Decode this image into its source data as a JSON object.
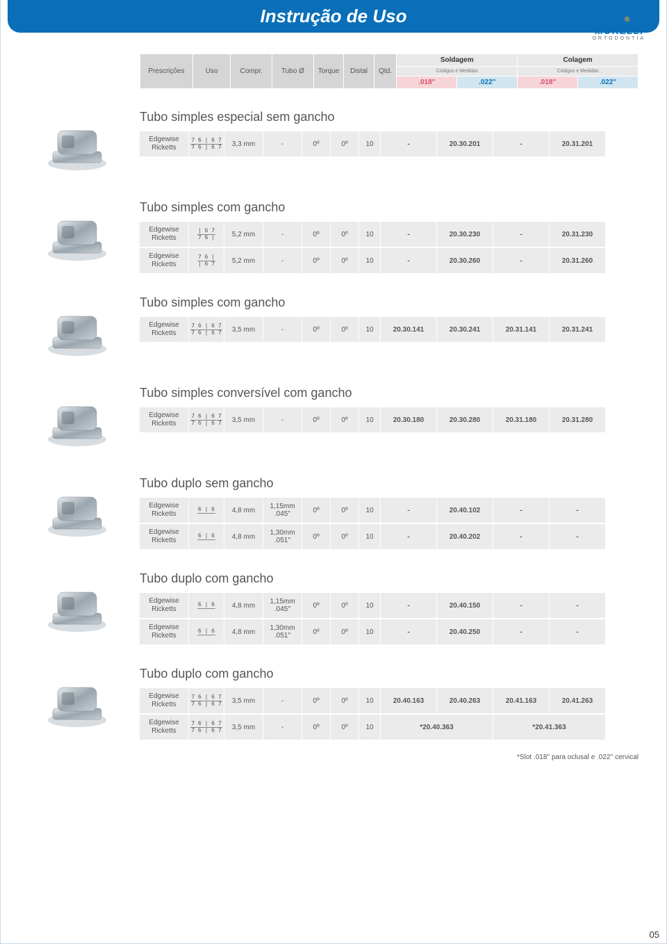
{
  "banner": "Instrução de Uso",
  "brand": {
    "name": "MORELLI",
    "sub": "ORTODONTIA"
  },
  "header": {
    "cols": [
      "Prescrições",
      "Uso",
      "Compr.",
      "Tubo Ø",
      "Torque",
      "Distal",
      "Qtd."
    ],
    "grp1": "Soldagem",
    "grp2": "Colagem",
    "sub": "Códigos e Medidas",
    "s018": ".018''",
    "s022": ".022''"
  },
  "sections": [
    {
      "title": "Tubo simples especial sem gancho",
      "rows": [
        {
          "presc": "Edgewise Ricketts",
          "uso": "7 6 | 6 7\n7 6 | 6 7",
          "compr": "3,3 mm",
          "tubo": "-",
          "torque": "0º",
          "distal": "0º",
          "qtd": "10",
          "c": [
            "-",
            "20.30.201",
            "-",
            "20.31.201"
          ],
          "t": [
            "d",
            "b",
            "d",
            "b"
          ]
        }
      ]
    },
    {
      "title": "Tubo simples com gancho",
      "rows": [
        {
          "presc": "Edgewise Ricketts",
          "uso": "    | 6 7\n7 6 |",
          "compr": "5,2 mm",
          "tubo": "-",
          "torque": "0º",
          "distal": "0º",
          "qtd": "10",
          "c": [
            "-",
            "20.30.230",
            "-",
            "20.31.230"
          ],
          "t": [
            "d",
            "b",
            "d",
            "b"
          ]
        },
        {
          "presc": "Edgewise Ricketts",
          "uso": "7 6 |\n    | 6 7",
          "compr": "5,2 mm",
          "tubo": "-",
          "torque": "0º",
          "distal": "0º",
          "qtd": "10",
          "c": [
            "-",
            "20.30.260",
            "-",
            "20.31.260"
          ],
          "t": [
            "d",
            "b",
            "d",
            "b"
          ]
        }
      ]
    },
    {
      "title": "Tubo simples com gancho",
      "rows": [
        {
          "presc": "Edgewise Ricketts",
          "uso": "7 6 | 6 7\n7 6 | 6 7",
          "compr": "3,5 mm",
          "tubo": "-",
          "torque": "0º",
          "distal": "0º",
          "qtd": "10",
          "c": [
            "20.30.141",
            "20.30.241",
            "20.31.141",
            "20.31.241"
          ],
          "t": [
            "r",
            "b",
            "r",
            "b"
          ]
        }
      ]
    },
    {
      "title": "Tubo simples conversível com gancho",
      "rows": [
        {
          "presc": "Edgewise Ricketts",
          "uso": "7 6 | 6 7\n7 6 | 6 7",
          "compr": "3,5 mm",
          "tubo": "-",
          "torque": "0º",
          "distal": "0º",
          "qtd": "10",
          "c": [
            "20.30.180",
            "20.30.280",
            "20.31.180",
            "20.31.280"
          ],
          "t": [
            "r",
            "b",
            "r",
            "b"
          ]
        }
      ]
    },
    {
      "title": "Tubo duplo sem gancho",
      "rows": [
        {
          "presc": "Edgewise Ricketts",
          "uso": "6 | 6",
          "compr": "4,8 mm",
          "tubo": "1,15mm .045''",
          "torque": "0º",
          "distal": "0º",
          "qtd": "10",
          "c": [
            "-",
            "20.40.102",
            "-",
            "-"
          ],
          "t": [
            "d",
            "b",
            "d",
            "d"
          ]
        },
        {
          "presc": "Edgewise Ricketts",
          "uso": "6 | 6",
          "compr": "4,8 mm",
          "tubo": "1,30mm .051''",
          "torque": "0º",
          "distal": "0º",
          "qtd": "10",
          "c": [
            "-",
            "20.40.202",
            "-",
            "-"
          ],
          "t": [
            "d",
            "b",
            "d",
            "d"
          ]
        }
      ]
    },
    {
      "title": "Tubo duplo com gancho",
      "rows": [
        {
          "presc": "Edgewise Ricketts",
          "uso": "6 | 6",
          "compr": "4,8 mm",
          "tubo": "1,15mm .045''",
          "torque": "0º",
          "distal": "0º",
          "qtd": "10",
          "c": [
            "-",
            "20.40.150",
            "-",
            "-"
          ],
          "t": [
            "d",
            "b",
            "d",
            "d"
          ]
        },
        {
          "presc": "Edgewise Ricketts",
          "uso": "6 | 6",
          "compr": "4,8 mm",
          "tubo": "1,30mm .051''",
          "torque": "0º",
          "distal": "0º",
          "qtd": "10",
          "c": [
            "-",
            "20.40.250",
            "-",
            "-"
          ],
          "t": [
            "d",
            "b",
            "d",
            "d"
          ]
        }
      ]
    },
    {
      "title": "Tubo duplo com gancho",
      "rows": [
        {
          "presc": "Edgewise Ricketts",
          "uso": "7 6 | 6 7\n7 6 | 6 7",
          "compr": "3,5 mm",
          "tubo": "-",
          "torque": "0º",
          "distal": "0º",
          "qtd": "10",
          "c": [
            "20.40.163",
            "20.40.263",
            "20.41.163",
            "20.41.263"
          ],
          "t": [
            "r",
            "b",
            "r",
            "b"
          ]
        },
        {
          "presc": "Edgewise Ricketts",
          "uso": "7 6 | 6 7\n7 6 | 6 7",
          "compr": "3,5 mm",
          "tubo": "-",
          "torque": "0º",
          "distal": "0º",
          "qtd": "10",
          "c": [
            "*20.40.363",
            "*20.41.363"
          ],
          "t": [
            "k",
            "k"
          ],
          "merge": true
        }
      ]
    }
  ],
  "footnote": "*Slot .018'' para oclusal e .022'' cervical",
  "pagenum": "05",
  "colors": {
    "blue": "#0a6fb8",
    "red": "#d94a6a",
    "grey": "#ebebeb",
    "hdrgrey": "#d5d5d5"
  }
}
